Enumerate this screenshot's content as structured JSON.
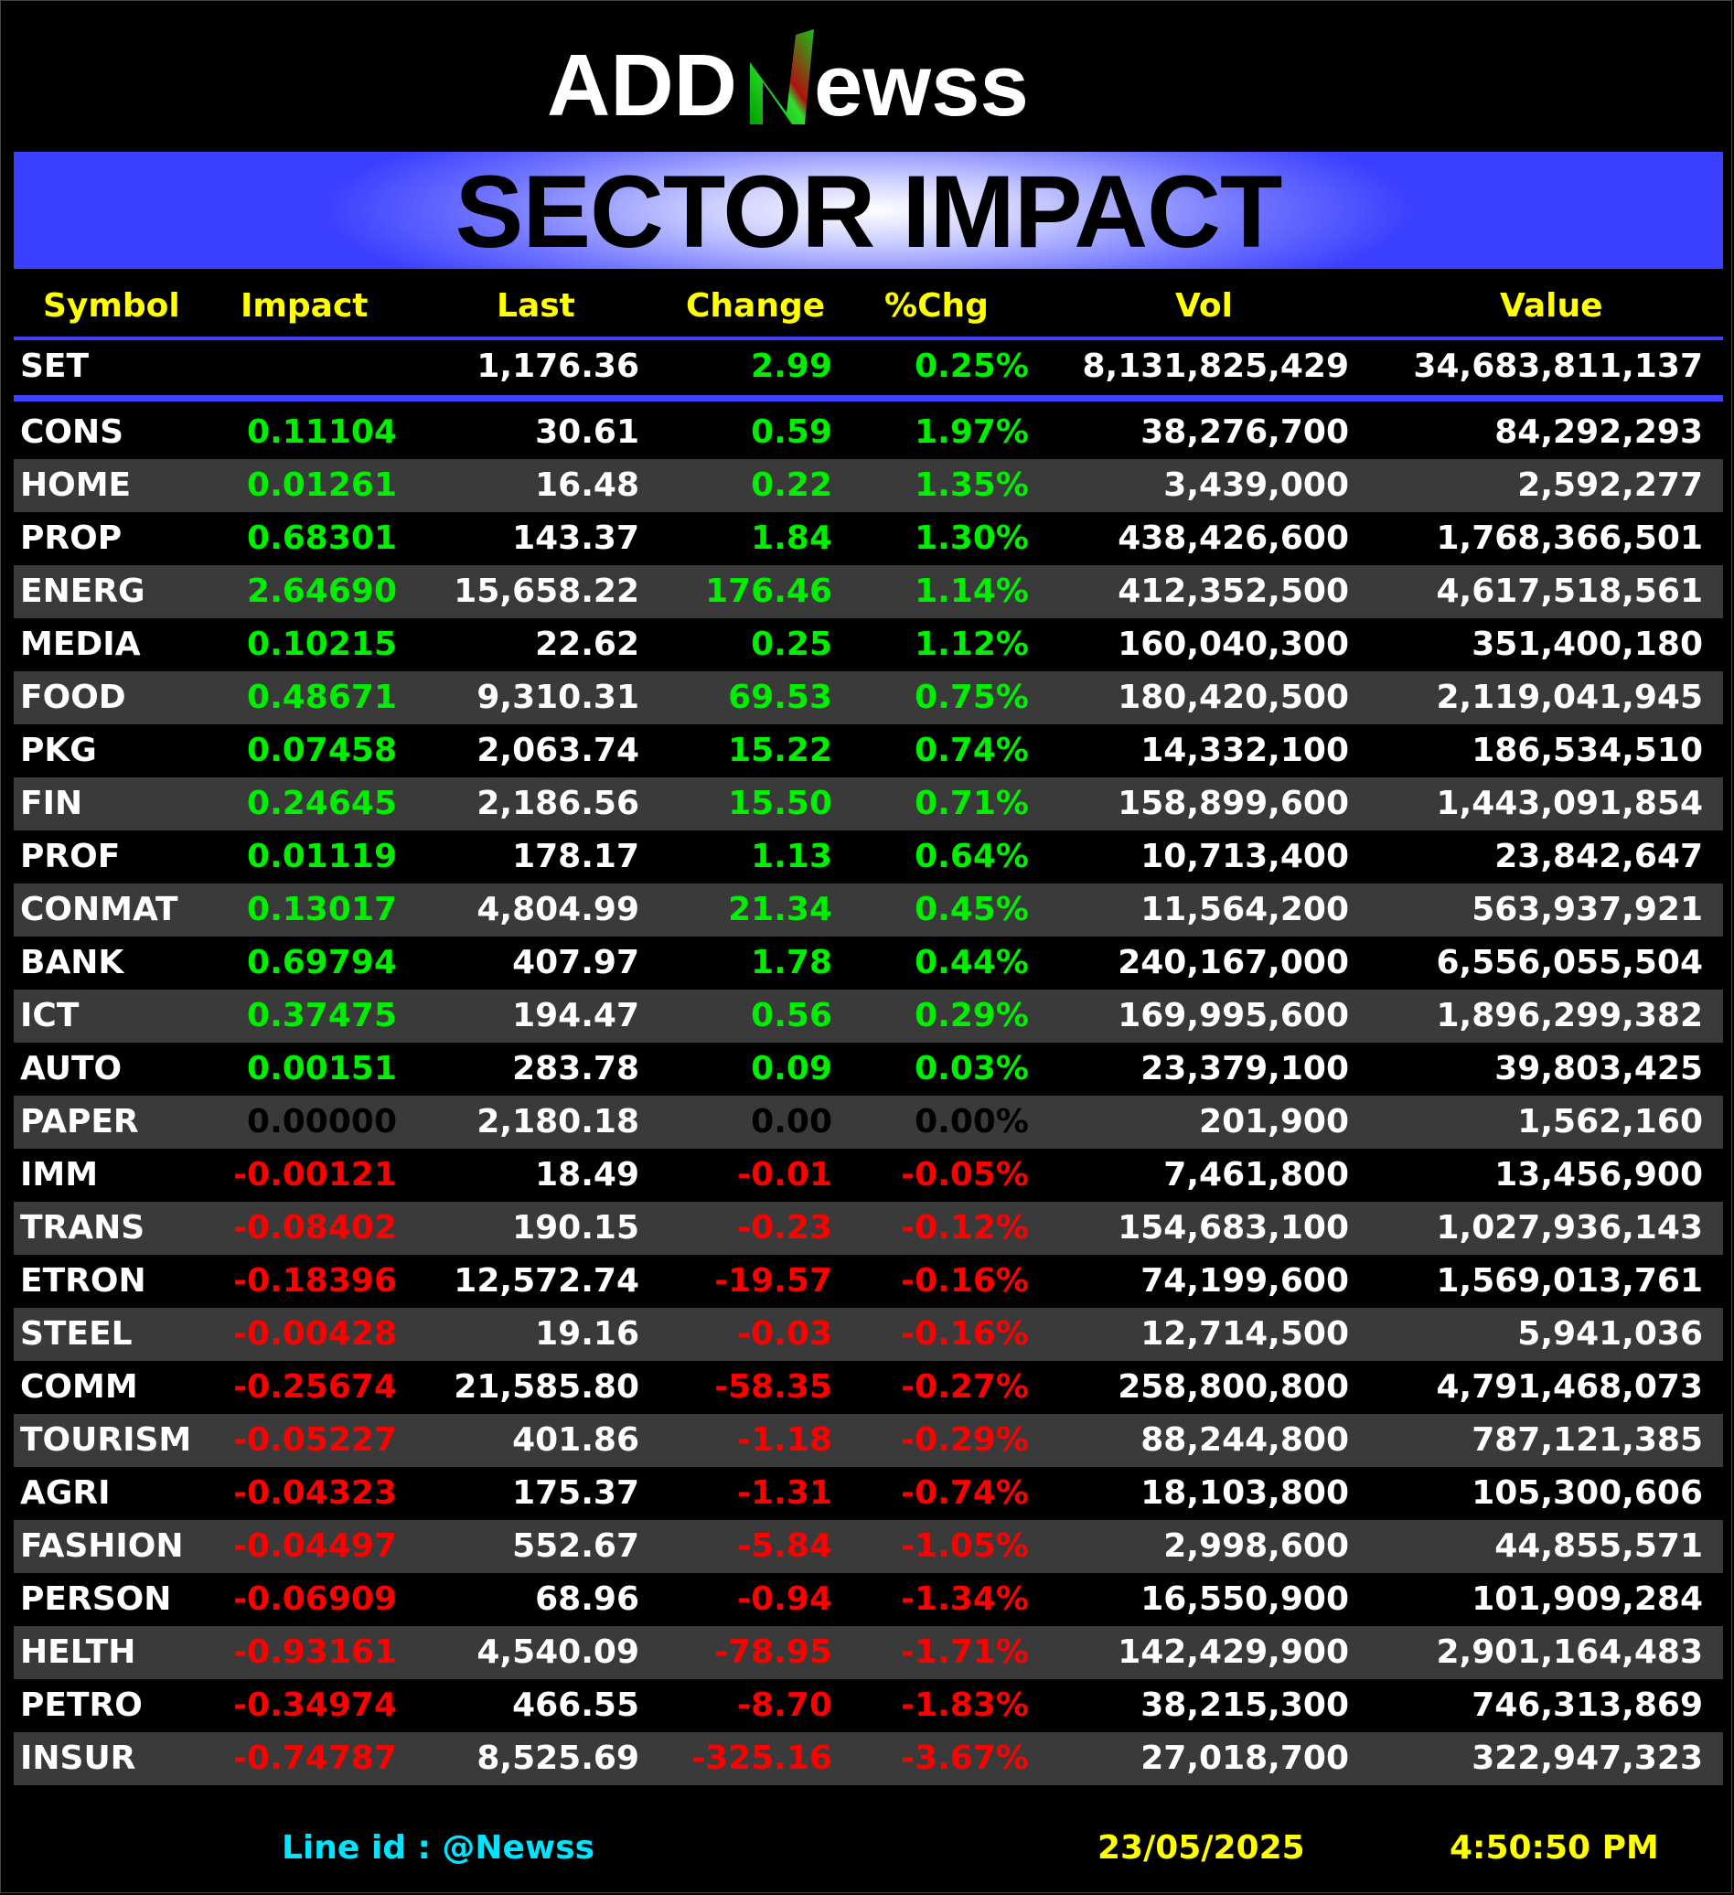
{
  "logo": {
    "text_left": "ADD",
    "text_mark": "N",
    "text_right": "ewss"
  },
  "banner": {
    "title": "SECTOR IMPACT"
  },
  "table": {
    "headers": [
      "Symbol",
      "Impact",
      "Last",
      "Change",
      "%Chg",
      "Vol",
      "Value"
    ],
    "set_row": {
      "symbol": "SET",
      "impact": "",
      "last": "1,176.36",
      "change": "2.99",
      "pct": "0.25%",
      "vol": "8,131,825,429",
      "value": "34,683,811,137"
    },
    "rows": [
      {
        "symbol": "CONS",
        "impact": "0.11104",
        "last": "30.61",
        "change": "0.59",
        "pct": "1.97%",
        "vol": "38,276,700",
        "value": "84,292,293",
        "dir": "pos"
      },
      {
        "symbol": "HOME",
        "impact": "0.01261",
        "last": "16.48",
        "change": "0.22",
        "pct": "1.35%",
        "vol": "3,439,000",
        "value": "2,592,277",
        "dir": "pos"
      },
      {
        "symbol": "PROP",
        "impact": "0.68301",
        "last": "143.37",
        "change": "1.84",
        "pct": "1.30%",
        "vol": "438,426,600",
        "value": "1,768,366,501",
        "dir": "pos"
      },
      {
        "symbol": "ENERG",
        "impact": "2.64690",
        "last": "15,658.22",
        "change": "176.46",
        "pct": "1.14%",
        "vol": "412,352,500",
        "value": "4,617,518,561",
        "dir": "pos"
      },
      {
        "symbol": "MEDIA",
        "impact": "0.10215",
        "last": "22.62",
        "change": "0.25",
        "pct": "1.12%",
        "vol": "160,040,300",
        "value": "351,400,180",
        "dir": "pos"
      },
      {
        "symbol": "FOOD",
        "impact": "0.48671",
        "last": "9,310.31",
        "change": "69.53",
        "pct": "0.75%",
        "vol": "180,420,500",
        "value": "2,119,041,945",
        "dir": "pos"
      },
      {
        "symbol": "PKG",
        "impact": "0.07458",
        "last": "2,063.74",
        "change": "15.22",
        "pct": "0.74%",
        "vol": "14,332,100",
        "value": "186,534,510",
        "dir": "pos"
      },
      {
        "symbol": "FIN",
        "impact": "0.24645",
        "last": "2,186.56",
        "change": "15.50",
        "pct": "0.71%",
        "vol": "158,899,600",
        "value": "1,443,091,854",
        "dir": "pos"
      },
      {
        "symbol": "PROF",
        "impact": "0.01119",
        "last": "178.17",
        "change": "1.13",
        "pct": "0.64%",
        "vol": "10,713,400",
        "value": "23,842,647",
        "dir": "pos"
      },
      {
        "symbol": "CONMAT",
        "impact": "0.13017",
        "last": "4,804.99",
        "change": "21.34",
        "pct": "0.45%",
        "vol": "11,564,200",
        "value": "563,937,921",
        "dir": "pos"
      },
      {
        "symbol": "BANK",
        "impact": "0.69794",
        "last": "407.97",
        "change": "1.78",
        "pct": "0.44%",
        "vol": "240,167,000",
        "value": "6,556,055,504",
        "dir": "pos"
      },
      {
        "symbol": "ICT",
        "impact": "0.37475",
        "last": "194.47",
        "change": "0.56",
        "pct": "0.29%",
        "vol": "169,995,600",
        "value": "1,896,299,382",
        "dir": "pos"
      },
      {
        "symbol": "AUTO",
        "impact": "0.00151",
        "last": "283.78",
        "change": "0.09",
        "pct": "0.03%",
        "vol": "23,379,100",
        "value": "39,803,425",
        "dir": "pos"
      },
      {
        "symbol": "PAPER",
        "impact": "0.00000",
        "last": "2,180.18",
        "change": "0.00",
        "pct": "0.00%",
        "vol": "201,900",
        "value": "1,562,160",
        "dir": "zero"
      },
      {
        "symbol": "IMM",
        "impact": "-0.00121",
        "last": "18.49",
        "change": "-0.01",
        "pct": "-0.05%",
        "vol": "7,461,800",
        "value": "13,456,900",
        "dir": "neg"
      },
      {
        "symbol": "TRANS",
        "impact": "-0.08402",
        "last": "190.15",
        "change": "-0.23",
        "pct": "-0.12%",
        "vol": "154,683,100",
        "value": "1,027,936,143",
        "dir": "neg"
      },
      {
        "symbol": "ETRON",
        "impact": "-0.18396",
        "last": "12,572.74",
        "change": "-19.57",
        "pct": "-0.16%",
        "vol": "74,199,600",
        "value": "1,569,013,761",
        "dir": "neg"
      },
      {
        "symbol": "STEEL",
        "impact": "-0.00428",
        "last": "19.16",
        "change": "-0.03",
        "pct": "-0.16%",
        "vol": "12,714,500",
        "value": "5,941,036",
        "dir": "neg"
      },
      {
        "symbol": "COMM",
        "impact": "-0.25674",
        "last": "21,585.80",
        "change": "-58.35",
        "pct": "-0.27%",
        "vol": "258,800,800",
        "value": "4,791,468,073",
        "dir": "neg"
      },
      {
        "symbol": "TOURISM",
        "impact": "-0.05227",
        "last": "401.86",
        "change": "-1.18",
        "pct": "-0.29%",
        "vol": "88,244,800",
        "value": "787,121,385",
        "dir": "neg"
      },
      {
        "symbol": "AGRI",
        "impact": "-0.04323",
        "last": "175.37",
        "change": "-1.31",
        "pct": "-0.74%",
        "vol": "18,103,800",
        "value": "105,300,606",
        "dir": "neg"
      },
      {
        "symbol": "FASHION",
        "impact": "-0.04497",
        "last": "552.67",
        "change": "-5.84",
        "pct": "-1.05%",
        "vol": "2,998,600",
        "value": "44,855,571",
        "dir": "neg"
      },
      {
        "symbol": "PERSON",
        "impact": "-0.06909",
        "last": "68.96",
        "change": "-0.94",
        "pct": "-1.34%",
        "vol": "16,550,900",
        "value": "101,909,284",
        "dir": "neg"
      },
      {
        "symbol": "HELTH",
        "impact": "-0.93161",
        "last": "4,540.09",
        "change": "-78.95",
        "pct": "-1.71%",
        "vol": "142,429,900",
        "value": "2,901,164,483",
        "dir": "neg"
      },
      {
        "symbol": "PETRO",
        "impact": "-0.34974",
        "last": "466.55",
        "change": "-8.70",
        "pct": "-1.83%",
        "vol": "38,215,300",
        "value": "746,313,869",
        "dir": "neg"
      },
      {
        "symbol": "INSUR",
        "impact": "-0.74787",
        "last": "8,525.69",
        "change": "-325.16",
        "pct": "-3.67%",
        "vol": "27,018,700",
        "value": "322,947,323",
        "dir": "neg"
      }
    ]
  },
  "footer": {
    "line_id": "Line id  : @Newss",
    "date": "23/05/2025",
    "time": "4:50:50 PM"
  },
  "colors": {
    "positive": "#00ee00",
    "negative": "#ff0000",
    "zero": "#000000",
    "header": "#ffff00",
    "accent": "#4040ff",
    "footer_line": "#00e5ff"
  }
}
